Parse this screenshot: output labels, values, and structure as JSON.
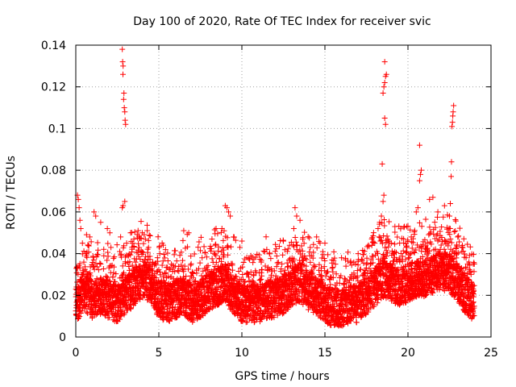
{
  "chart_data": {
    "type": "scatter",
    "title": "Day 100 of 2020, Rate Of TEC Index for receiver svic",
    "xlabel": "GPS time / hours",
    "ylabel": "ROTI / TECUs",
    "xlim": [
      0,
      25
    ],
    "ylim": [
      0,
      0.14
    ],
    "x_ticks": [
      0,
      5,
      10,
      15,
      20,
      25
    ],
    "y_ticks": [
      0,
      0.02,
      0.04,
      0.06,
      0.08,
      0.1,
      0.12,
      0.14
    ],
    "x_tick_labels": [
      "0",
      "5",
      "10",
      "15",
      "20",
      "25"
    ],
    "y_tick_labels": [
      "0",
      "0.02",
      "0.04",
      "0.06",
      "0.08",
      "0.1",
      "0.12",
      "0.14"
    ],
    "grid": true,
    "marker": "plus",
    "color": "#ff0000",
    "series": [
      {
        "values_description_only": "",
        "points": [
          [
            0.1,
            0.068
          ],
          [
            0.15,
            0.066
          ],
          [
            0.2,
            0.062
          ],
          [
            0.25,
            0.056
          ],
          [
            0.3,
            0.052
          ],
          [
            0.4,
            0.045
          ],
          [
            0.6,
            0.04
          ],
          [
            1.1,
            0.06
          ],
          [
            1.2,
            0.058
          ],
          [
            1.5,
            0.055
          ],
          [
            1.9,
            0.052
          ],
          [
            2.05,
            0.05
          ],
          [
            2.8,
            0.138
          ],
          [
            2.82,
            0.132
          ],
          [
            2.85,
            0.13
          ],
          [
            2.84,
            0.126
          ],
          [
            2.9,
            0.117
          ],
          [
            2.88,
            0.114
          ],
          [
            2.92,
            0.11
          ],
          [
            2.95,
            0.108
          ],
          [
            2.97,
            0.104
          ],
          [
            3.0,
            0.102
          ],
          [
            2.8,
            0.062
          ],
          [
            2.85,
            0.063
          ],
          [
            2.95,
            0.065
          ],
          [
            2.7,
            0.048
          ],
          [
            3.5,
            0.047
          ],
          [
            4.0,
            0.05
          ],
          [
            4.3,
            0.051
          ],
          [
            5.2,
            0.045
          ],
          [
            6.5,
            0.051
          ],
          [
            6.8,
            0.05
          ],
          [
            8.2,
            0.047
          ],
          [
            8.8,
            0.052
          ],
          [
            9.0,
            0.063
          ],
          [
            9.1,
            0.062
          ],
          [
            9.2,
            0.06
          ],
          [
            9.3,
            0.058
          ],
          [
            9.5,
            0.048
          ],
          [
            10.0,
            0.046
          ],
          [
            11.5,
            0.042
          ],
          [
            12.5,
            0.046
          ],
          [
            13.2,
            0.062
          ],
          [
            13.3,
            0.058
          ],
          [
            13.5,
            0.056
          ],
          [
            14.5,
            0.048
          ],
          [
            15.0,
            0.045
          ],
          [
            16.0,
            0.038
          ],
          [
            17.0,
            0.04
          ],
          [
            18.0,
            0.045
          ],
          [
            18.2,
            0.052
          ],
          [
            18.3,
            0.055
          ],
          [
            18.4,
            0.058
          ],
          [
            18.5,
            0.065
          ],
          [
            18.55,
            0.068
          ],
          [
            18.45,
            0.083
          ],
          [
            18.6,
            0.105
          ],
          [
            18.65,
            0.102
          ],
          [
            18.5,
            0.117
          ],
          [
            18.55,
            0.12
          ],
          [
            18.6,
            0.122
          ],
          [
            18.65,
            0.125
          ],
          [
            18.7,
            0.126
          ],
          [
            18.6,
            0.132
          ],
          [
            19.5,
            0.045
          ],
          [
            20.2,
            0.048
          ],
          [
            20.5,
            0.06
          ],
          [
            20.6,
            0.062
          ],
          [
            20.7,
            0.075
          ],
          [
            20.75,
            0.078
          ],
          [
            20.8,
            0.08
          ],
          [
            20.7,
            0.092
          ],
          [
            21.3,
            0.066
          ],
          [
            21.5,
            0.067
          ],
          [
            21.8,
            0.06
          ],
          [
            22.2,
            0.063
          ],
          [
            22.5,
            0.058
          ],
          [
            22.55,
            0.064
          ],
          [
            22.6,
            0.077
          ],
          [
            22.62,
            0.084
          ],
          [
            22.65,
            0.101
          ],
          [
            22.68,
            0.103
          ],
          [
            22.7,
            0.106
          ],
          [
            22.72,
            0.108
          ],
          [
            22.75,
            0.111
          ],
          [
            23.0,
            0.048
          ],
          [
            23.5,
            0.038
          ],
          [
            23.8,
            0.03
          ]
        ]
      }
    ],
    "dense_band": {
      "note_removed": "",
      "x_range": [
        0,
        24
      ],
      "baseline_profile": [
        [
          0,
          0.016
        ],
        [
          0.5,
          0.022
        ],
        [
          1,
          0.018
        ],
        [
          1.5,
          0.02
        ],
        [
          2,
          0.018
        ],
        [
          2.5,
          0.016
        ],
        [
          3,
          0.02
        ],
        [
          3.5,
          0.024
        ],
        [
          4,
          0.028
        ],
        [
          4.5,
          0.026
        ],
        [
          5,
          0.018
        ],
        [
          5.5,
          0.016
        ],
        [
          6,
          0.018
        ],
        [
          6.5,
          0.02
        ],
        [
          7,
          0.016
        ],
        [
          7.5,
          0.018
        ],
        [
          8,
          0.022
        ],
        [
          8.5,
          0.024
        ],
        [
          9,
          0.026
        ],
        [
          9.5,
          0.02
        ],
        [
          10,
          0.016
        ],
        [
          10.5,
          0.016
        ],
        [
          11,
          0.016
        ],
        [
          11.5,
          0.018
        ],
        [
          12,
          0.018
        ],
        [
          12.5,
          0.02
        ],
        [
          13,
          0.024
        ],
        [
          13.5,
          0.026
        ],
        [
          14,
          0.022
        ],
        [
          14.5,
          0.02
        ],
        [
          15,
          0.016
        ],
        [
          15.5,
          0.014
        ],
        [
          16,
          0.014
        ],
        [
          16.5,
          0.016
        ],
        [
          17,
          0.016
        ],
        [
          17.5,
          0.02
        ],
        [
          18,
          0.024
        ],
        [
          18.5,
          0.028
        ],
        [
          19,
          0.026
        ],
        [
          19.5,
          0.024
        ],
        [
          20,
          0.026
        ],
        [
          20.5,
          0.028
        ],
        [
          21,
          0.028
        ],
        [
          21.5,
          0.03
        ],
        [
          22,
          0.032
        ],
        [
          22.5,
          0.03
        ],
        [
          23,
          0.026
        ],
        [
          23.5,
          0.02
        ],
        [
          24,
          0.016
        ]
      ]
    }
  }
}
